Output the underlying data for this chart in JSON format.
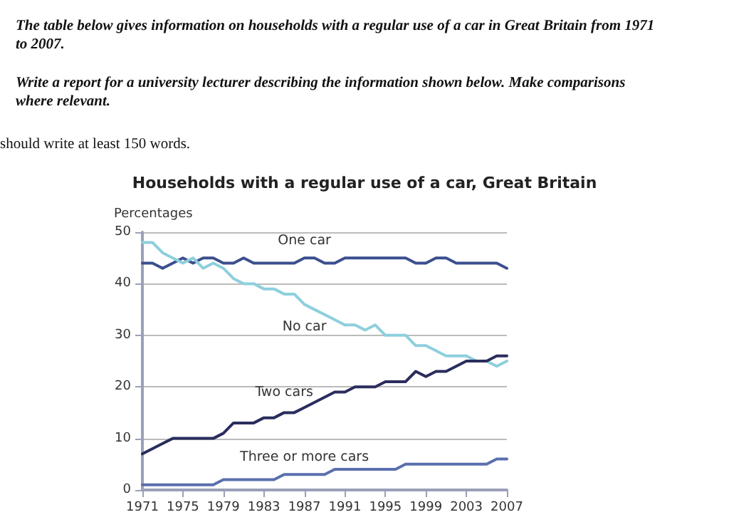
{
  "chart_data": {
    "type": "line",
    "title": "Households with a regular use of a car, Great Britain",
    "ylabel": "Percentages",
    "annotations": [
      "The table below gives information on households with a regular use of a car in Great Britain from 1971 to 2007.",
      "Write a report for a university lecturer describing the information shown below. Make comparisons where relevant.",
      "should write at least 150 words."
    ],
    "x": [
      1971,
      1972,
      1973,
      1974,
      1975,
      1976,
      1977,
      1978,
      1979,
      1980,
      1981,
      1982,
      1983,
      1984,
      1985,
      1986,
      1987,
      1988,
      1989,
      1990,
      1991,
      1992,
      1993,
      1994,
      1995,
      1996,
      1997,
      1998,
      1999,
      2000,
      2001,
      2002,
      2003,
      2004,
      2005,
      2006,
      2007
    ],
    "series": [
      {
        "name": "One car",
        "color": "#3b4f8f",
        "values": [
          44,
          44,
          43,
          44,
          45,
          44,
          45,
          45,
          44,
          44,
          45,
          44,
          44,
          44,
          44,
          44,
          45,
          45,
          44,
          44,
          45,
          45,
          45,
          45,
          45,
          45,
          45,
          44,
          44,
          45,
          45,
          44,
          44,
          44,
          44,
          44,
          43
        ]
      },
      {
        "name": "No car",
        "color": "#8ecfdc",
        "values": [
          48,
          48,
          46,
          45,
          44,
          45,
          43,
          44,
          43,
          41,
          40,
          40,
          39,
          39,
          38,
          38,
          36,
          35,
          34,
          33,
          32,
          32,
          31,
          32,
          30,
          30,
          30,
          28,
          28,
          27,
          26,
          26,
          26,
          25,
          25,
          24,
          25
        ]
      },
      {
        "name": "Two cars",
        "color": "#2a2d5c",
        "values": [
          7,
          8,
          9,
          10,
          10,
          10,
          10,
          10,
          11,
          13,
          13,
          13,
          14,
          14,
          15,
          15,
          16,
          17,
          18,
          19,
          19,
          20,
          20,
          20,
          21,
          21,
          21,
          23,
          22,
          23,
          23,
          24,
          25,
          25,
          25,
          26,
          26
        ]
      },
      {
        "name": "Three or more cars",
        "color": "#5a6fae",
        "values": [
          1,
          1,
          1,
          1,
          1,
          1,
          1,
          1,
          2,
          2,
          2,
          2,
          2,
          2,
          3,
          3,
          3,
          3,
          3,
          4,
          4,
          4,
          4,
          4,
          4,
          4,
          5,
          5,
          5,
          5,
          5,
          5,
          5,
          5,
          5,
          6,
          6
        ]
      }
    ],
    "xlim": [
      1971,
      2007
    ],
    "xticks": [
      1971,
      1975,
      1979,
      1983,
      1987,
      1991,
      1995,
      1999,
      2003,
      2007
    ],
    "ylim": [
      0,
      50
    ],
    "yticks": [
      0,
      10,
      20,
      30,
      40,
      50
    ],
    "grid": "y",
    "legend": false,
    "marker": "none",
    "line_style": "solid"
  }
}
